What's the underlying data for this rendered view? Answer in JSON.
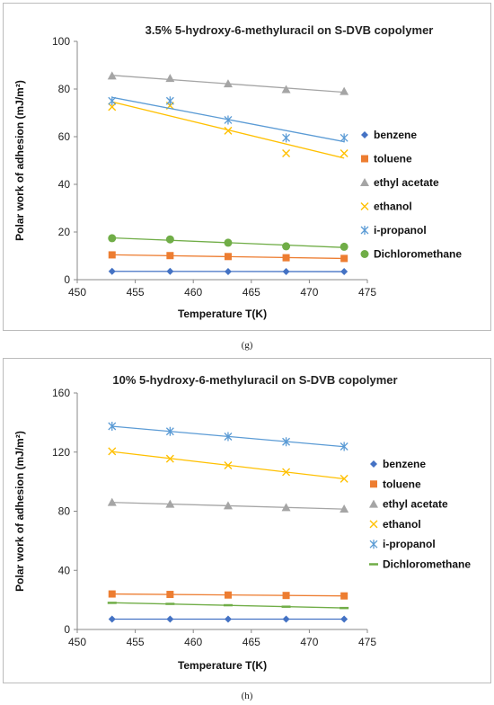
{
  "captions": {
    "g": "(g)",
    "h": "(h)"
  },
  "chart_data": [
    {
      "type": "scatter",
      "title": "3.5% 5-hydroxy-6-methyluracil on S-DVB copolymer",
      "xlabel": "Temperature T(K)",
      "ylabel": "Polar work of adhesion (mJ/m²)",
      "xlim": [
        450,
        475
      ],
      "ylim": [
        0,
        100
      ],
      "xticks": [
        450,
        455,
        460,
        465,
        470,
        475
      ],
      "yticks": [
        0,
        20,
        40,
        60,
        80,
        100
      ],
      "x": [
        453,
        458,
        463,
        468,
        473
      ],
      "trendlines": true,
      "legend_position": "right",
      "series": [
        {
          "name": "benzene",
          "marker": "diamond",
          "color": "#4472C4",
          "values": [
            3.5,
            3.5,
            3.4,
            3.4,
            3.4
          ]
        },
        {
          "name": "toluene",
          "marker": "square",
          "color": "#ED7D31",
          "values": [
            10.4,
            10.1,
            9.7,
            9.2,
            8.9
          ]
        },
        {
          "name": "ethyl acetate",
          "marker": "triangle",
          "color": "#A5A5A5",
          "values": [
            85.5,
            84.5,
            82.2,
            79.8,
            79.0
          ]
        },
        {
          "name": "ethanol",
          "marker": "x",
          "color": "#FFC000",
          "values": [
            72.5,
            73.0,
            62.5,
            53.0,
            53.0
          ]
        },
        {
          "name": "i-propanol",
          "marker": "asterisk",
          "color": "#5B9BD5",
          "values": [
            75.0,
            75.0,
            67.0,
            59.5,
            59.5
          ]
        },
        {
          "name": "Dichloromethane",
          "marker": "circle",
          "color": "#70AD47",
          "values": [
            17.4,
            16.9,
            15.5,
            14.0,
            13.8
          ]
        }
      ]
    },
    {
      "type": "scatter",
      "title": "10% 5-hydroxy-6-methyluracil on S-DVB copolymer",
      "xlabel": "Temperature T(K)",
      "ylabel": "Polar work of adhesion (mJ/m²)",
      "xlim": [
        450,
        475
      ],
      "ylim": [
        0,
        160
      ],
      "xticks": [
        450,
        455,
        460,
        465,
        470,
        475
      ],
      "yticks": [
        0,
        40,
        80,
        120,
        160
      ],
      "x": [
        453,
        458,
        463,
        468,
        473
      ],
      "trendlines": true,
      "legend_position": "right",
      "series": [
        {
          "name": "benzene",
          "marker": "diamond",
          "color": "#4472C4",
          "values": [
            7.0,
            7.0,
            7.0,
            7.0,
            7.0
          ]
        },
        {
          "name": "toluene",
          "marker": "square",
          "color": "#ED7D31",
          "values": [
            24.0,
            23.7,
            23.3,
            23.0,
            22.7
          ]
        },
        {
          "name": "ethyl acetate",
          "marker": "triangle",
          "color": "#A5A5A5",
          "values": [
            86.0,
            84.8,
            83.7,
            82.5,
            81.5
          ]
        },
        {
          "name": "ethanol",
          "marker": "x",
          "color": "#FFC000",
          "values": [
            120.5,
            115.5,
            111.0,
            106.5,
            102.0
          ]
        },
        {
          "name": "i-propanol",
          "marker": "asterisk",
          "color": "#5B9BD5",
          "values": [
            137.5,
            134.0,
            130.5,
            127.0,
            123.8
          ]
        },
        {
          "name": "Dichloromethane",
          "marker": "dash",
          "color": "#70AD47",
          "values": [
            18.0,
            17.3,
            16.4,
            15.4,
            14.5
          ]
        }
      ]
    }
  ]
}
